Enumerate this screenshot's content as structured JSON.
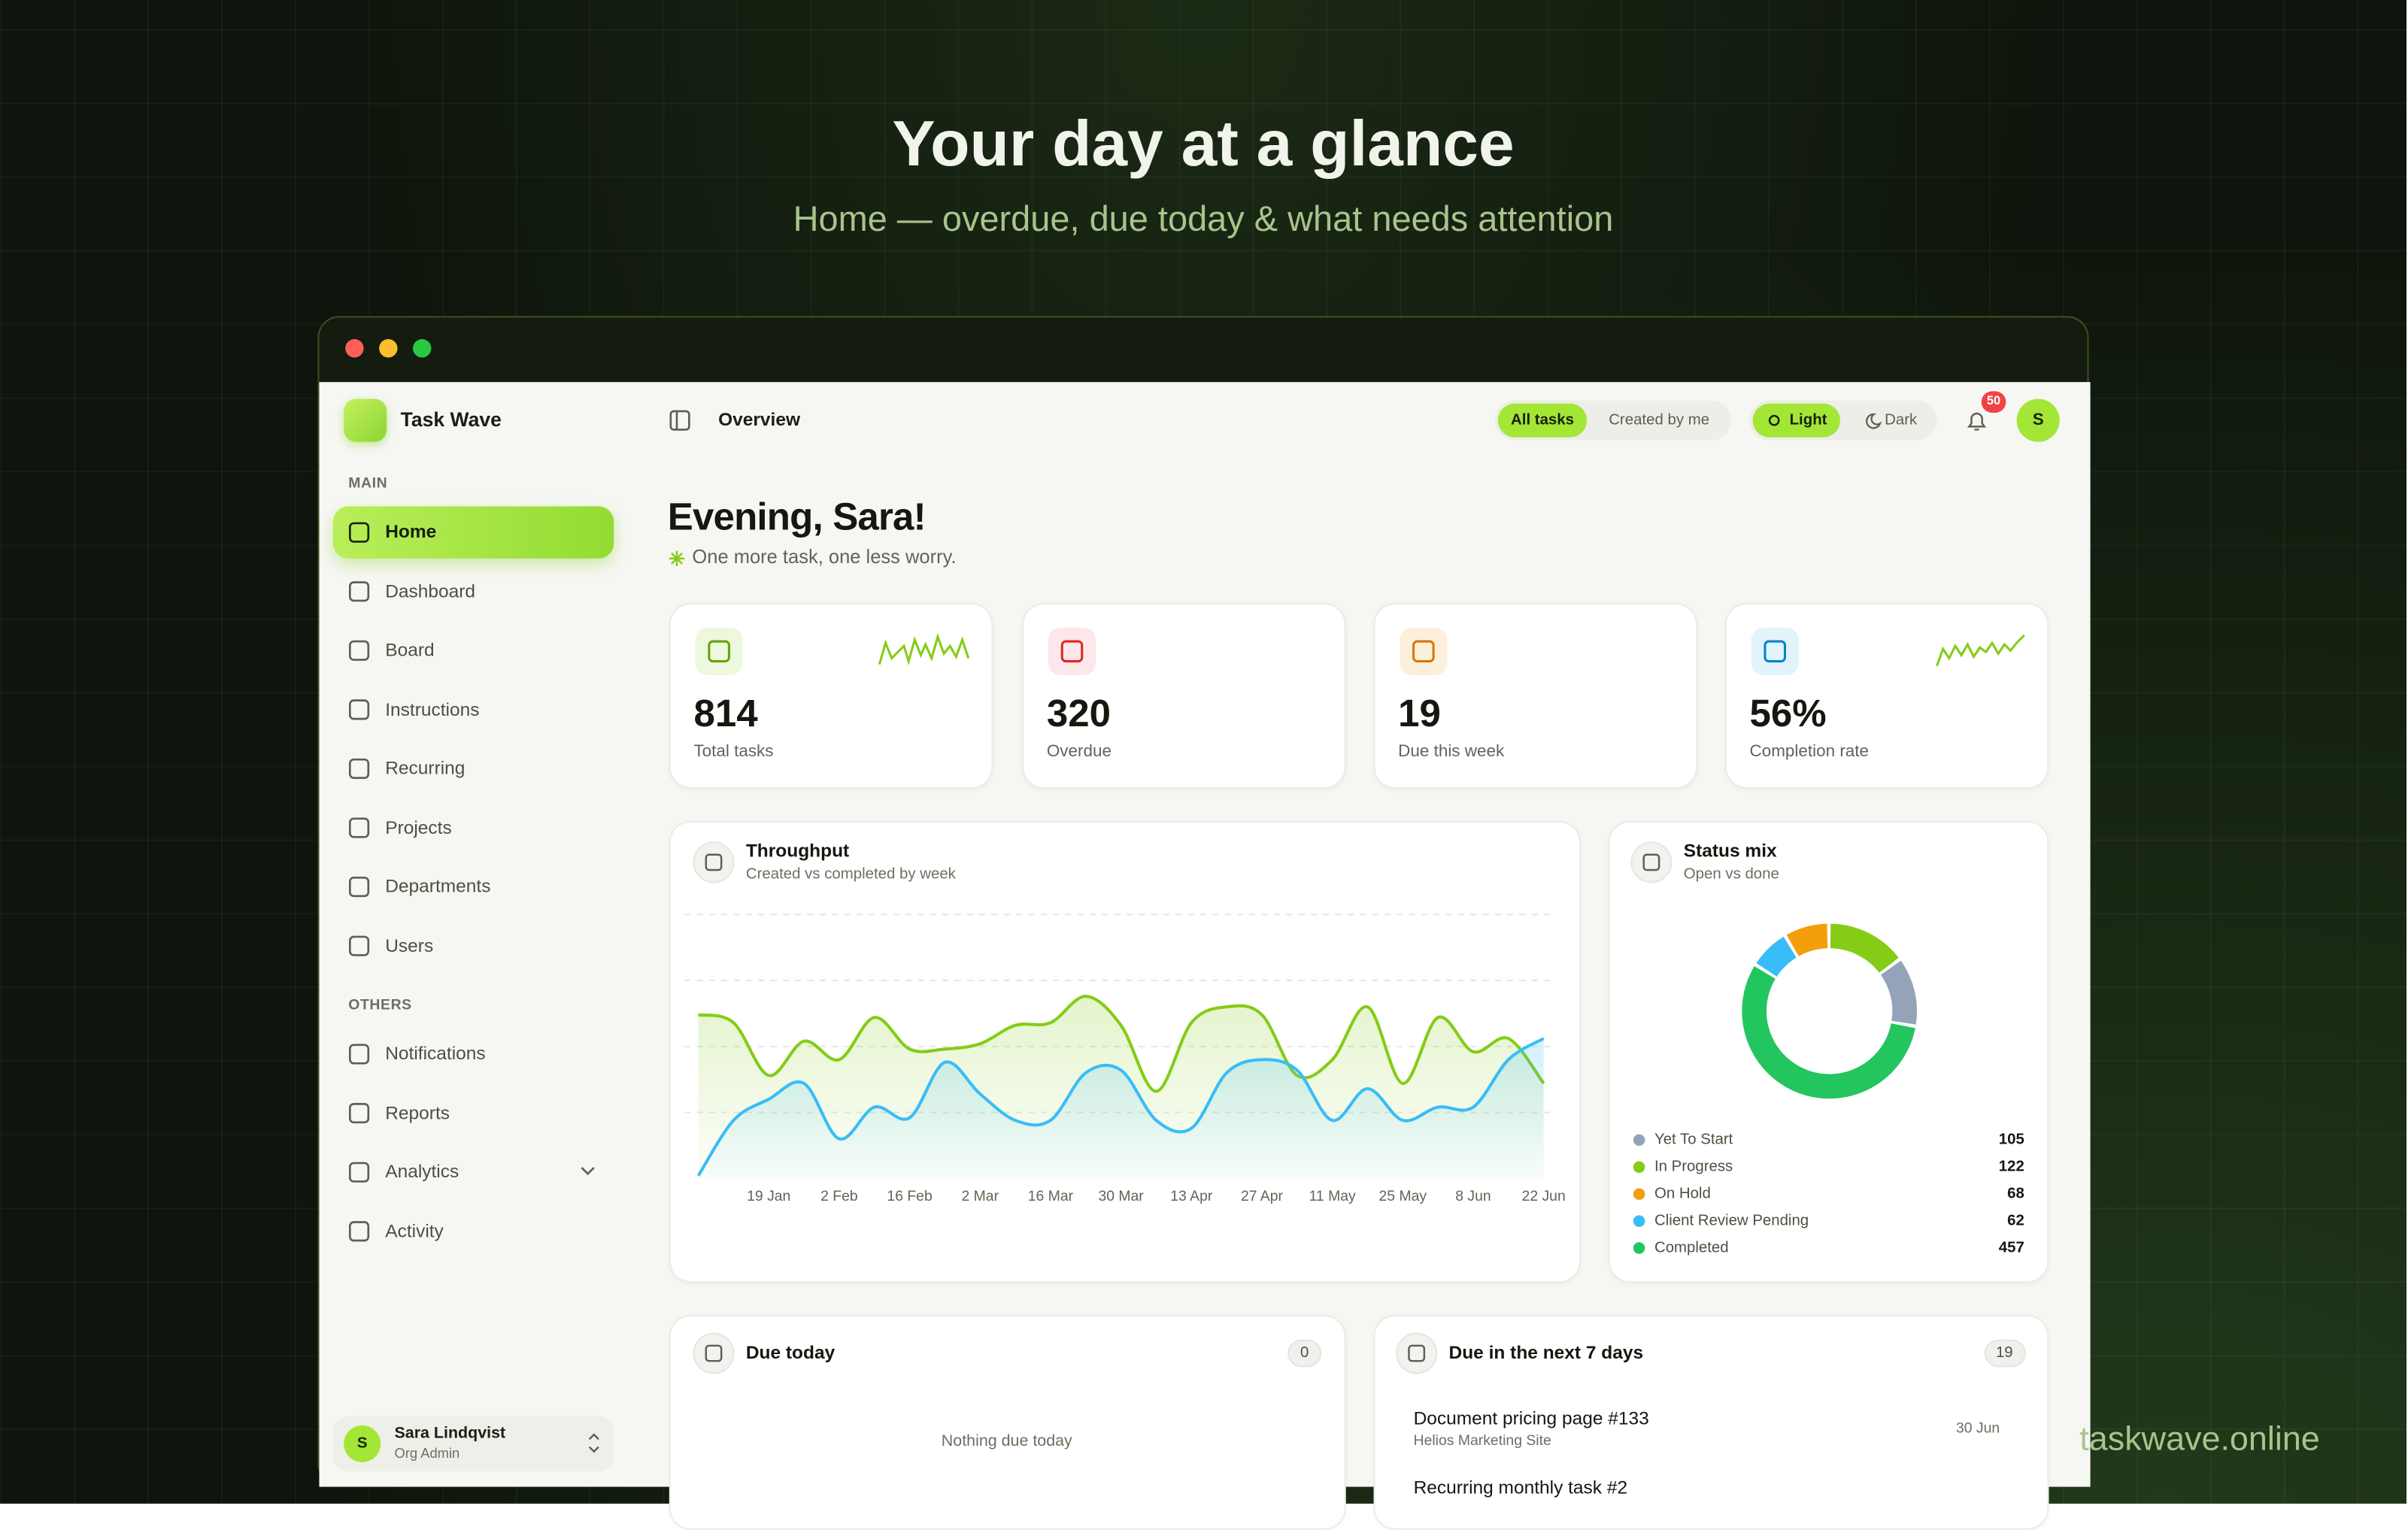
{
  "header": {
    "title": "Your day at a glance",
    "subtitle": "Home — overdue, due today & what needs attention"
  },
  "app": {
    "name": "Task Wave"
  },
  "sidebar": {
    "main_label": "MAIN",
    "main": [
      "Home",
      "Dashboard",
      "Board",
      "Instructions",
      "Recurring",
      "Projects",
      "Departments",
      "Users"
    ],
    "others_label": "OTHERS",
    "others": [
      "Notifications",
      "Reports",
      "Analytics",
      "Activity"
    ],
    "user": {
      "initial": "S",
      "name": "Sara Lindqvist",
      "role": "Org Admin"
    }
  },
  "topbar": {
    "page": "Overview",
    "filters": [
      "All tasks",
      "Created by me"
    ],
    "themes": [
      "Light",
      "Dark"
    ],
    "notifications": 50,
    "avatar": "S"
  },
  "greeting": {
    "title": "Evening, Sara!",
    "subtitle": "One more task, one less worry."
  },
  "stats": [
    {
      "value": "814",
      "label": "Total tasks"
    },
    {
      "value": "320",
      "label": "Overdue"
    },
    {
      "value": "19",
      "label": "Due this week"
    },
    {
      "value": "56%",
      "label": "Completion rate"
    }
  ],
  "chart_data": [
    {
      "type": "area",
      "title": "Throughput",
      "subtitle": "Created vs completed by week",
      "categories": [
        null,
        null,
        "19 Jan",
        null,
        "2 Feb",
        null,
        "16 Feb",
        null,
        "2 Mar",
        null,
        "16 Mar",
        null,
        "30 Mar",
        null,
        "13 Apr",
        null,
        "27 Apr",
        null,
        "11 May",
        null,
        "25 May",
        null,
        "8 Jun",
        null,
        "22 Jun"
      ],
      "series": [
        {
          "color": "#84cc16",
          "values": [
            62,
            59,
            39,
            52,
            45,
            61,
            49,
            49,
            51,
            58,
            59,
            69,
            58,
            33,
            59,
            65,
            62,
            39,
            45,
            65,
            36,
            61,
            48,
            53,
            36
          ]
        },
        {
          "color": "#38bdf8",
          "values": [
            1,
            22,
            30,
            36,
            15,
            27,
            23,
            44,
            32,
            22,
            22,
            40,
            41,
            22,
            19,
            40,
            45,
            41,
            22,
            34,
            22,
            27,
            27,
            45,
            53
          ]
        }
      ],
      "ylim": [
        0,
        100
      ],
      "ygrid": [
        25,
        50,
        75,
        100
      ]
    },
    {
      "type": "donut",
      "title": "Status mix",
      "subtitle": "Open vs done",
      "categories": [
        "Yet To Start",
        "In Progress",
        "On Hold",
        "Client Review Pending",
        "Completed"
      ],
      "values": [
        105,
        122,
        68,
        62,
        457
      ],
      "colors": [
        "#94a3b8",
        "#84cc16",
        "#f59e0b",
        "#38bdf8",
        "#22c55e"
      ]
    }
  ],
  "due_today": {
    "title": "Due today",
    "count": 0,
    "empty": "Nothing due today"
  },
  "due_week": {
    "title": "Due in the next 7 days",
    "count": 19,
    "items": [
      {
        "title": "Document pricing page #133",
        "project": "Helios Marketing Site",
        "date": "30 Jun"
      },
      {
        "title": "Recurring monthly task #2"
      }
    ]
  },
  "watermark": "taskwave.online"
}
